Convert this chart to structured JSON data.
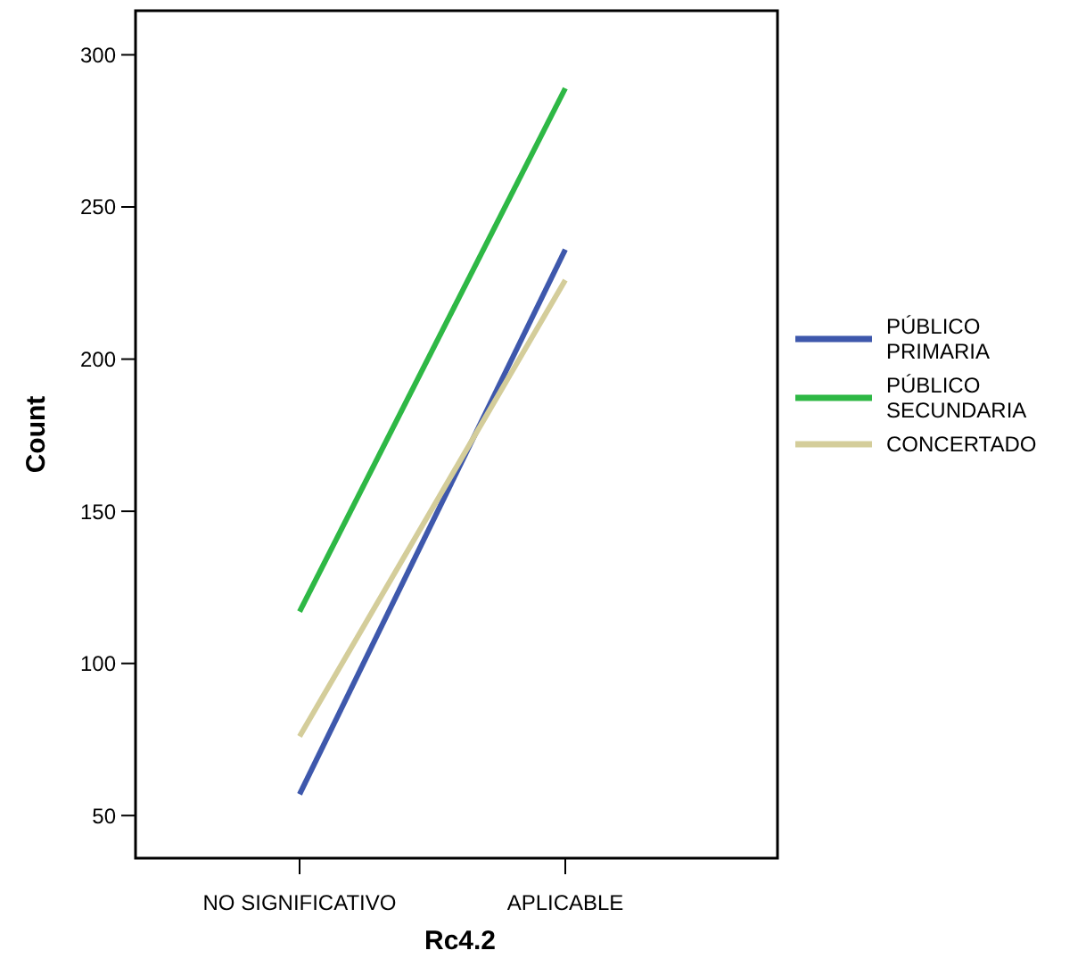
{
  "chart_data": {
    "type": "line",
    "xlabel": "Rc4.2",
    "ylabel": "Count",
    "categories": [
      "NO SIGNIFICATIVO",
      "APLICABLE"
    ],
    "series": [
      {
        "name": "PÚBLICO PRIMARIA",
        "color": "#3e58ac",
        "values": [
          57,
          236
        ]
      },
      {
        "name": "PÚBLICO SECUNDARIA",
        "color": "#2eb845",
        "values": [
          117,
          289
        ]
      },
      {
        "name": "CONCERTADO",
        "color": "#d4cd9a",
        "values": [
          76,
          226
        ]
      }
    ],
    "ylim": [
      36,
      314.5
    ],
    "yticks": [
      50,
      100,
      150,
      200,
      250,
      300
    ],
    "grid": false,
    "legend": "right",
    "marker": "none",
    "line_style": "solid"
  }
}
